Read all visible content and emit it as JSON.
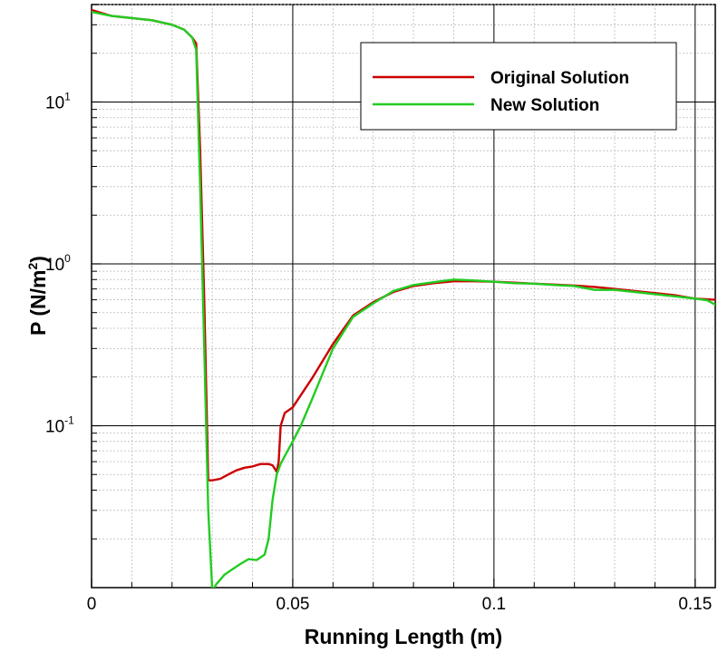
{
  "chart_data": {
    "type": "line",
    "xlabel": "Running Length (m)",
    "ylabel_main": "P (N/m",
    "ylabel_sup": "2",
    "ylabel_tail": ")",
    "xlim": [
      0,
      0.155
    ],
    "ylim": [
      0.01,
      40
    ],
    "yscale": "log",
    "grid": true,
    "legend_position": "top-right",
    "x_ticks": [
      {
        "value": 0,
        "label": "0"
      },
      {
        "value": 0.05,
        "label": "0.05"
      },
      {
        "value": 0.1,
        "label": "0.1"
      },
      {
        "value": 0.15,
        "label": "0.15"
      }
    ],
    "y_ticks": [
      {
        "value": 0.1,
        "base": "10",
        "exp": "-1"
      },
      {
        "value": 1,
        "base": "10",
        "exp": "0"
      },
      {
        "value": 10,
        "base": "10",
        "exp": "1"
      }
    ],
    "series": [
      {
        "name": "Original Solution",
        "color": "#cc0000",
        "x": [
          0,
          0.005,
          0.01,
          0.015,
          0.02,
          0.023,
          0.025,
          0.026,
          0.027,
          0.028,
          0.029,
          0.03,
          0.032,
          0.034,
          0.036,
          0.038,
          0.04,
          0.042,
          0.044,
          0.045,
          0.046,
          0.0465,
          0.047,
          0.048,
          0.05,
          0.055,
          0.06,
          0.065,
          0.07,
          0.075,
          0.08,
          0.085,
          0.09,
          0.095,
          0.1,
          0.105,
          0.11,
          0.115,
          0.12,
          0.125,
          0.13,
          0.135,
          0.14,
          0.145,
          0.15,
          0.155
        ],
        "y": [
          37,
          34,
          33,
          32,
          30,
          28,
          25,
          23,
          5,
          0.6,
          0.046,
          0.046,
          0.047,
          0.05,
          0.053,
          0.055,
          0.056,
          0.058,
          0.058,
          0.057,
          0.052,
          0.06,
          0.1,
          0.12,
          0.13,
          0.2,
          0.32,
          0.48,
          0.58,
          0.67,
          0.73,
          0.76,
          0.78,
          0.78,
          0.775,
          0.765,
          0.755,
          0.745,
          0.735,
          0.72,
          0.7,
          0.68,
          0.66,
          0.64,
          0.61,
          0.6
        ]
      },
      {
        "name": "New Solution",
        "color": "#22cc22",
        "x": [
          0,
          0.005,
          0.01,
          0.015,
          0.02,
          0.023,
          0.025,
          0.026,
          0.027,
          0.028,
          0.029,
          0.03,
          0.031,
          0.033,
          0.035,
          0.037,
          0.039,
          0.041,
          0.043,
          0.044,
          0.045,
          0.046,
          0.047,
          0.048,
          0.05,
          0.052,
          0.055,
          0.06,
          0.065,
          0.07,
          0.075,
          0.08,
          0.085,
          0.09,
          0.095,
          0.1,
          0.105,
          0.11,
          0.115,
          0.12,
          0.125,
          0.13,
          0.135,
          0.14,
          0.145,
          0.15,
          0.153,
          0.155
        ],
        "y": [
          36,
          34,
          33,
          32,
          30,
          28,
          25,
          21,
          3,
          0.3,
          0.03,
          0.0095,
          0.0105,
          0.012,
          0.013,
          0.014,
          0.015,
          0.0148,
          0.016,
          0.02,
          0.035,
          0.05,
          0.058,
          0.065,
          0.08,
          0.1,
          0.15,
          0.3,
          0.47,
          0.57,
          0.68,
          0.74,
          0.77,
          0.8,
          0.79,
          0.775,
          0.76,
          0.755,
          0.74,
          0.73,
          0.69,
          0.69,
          0.67,
          0.65,
          0.63,
          0.61,
          0.595,
          0.56
        ]
      }
    ]
  }
}
